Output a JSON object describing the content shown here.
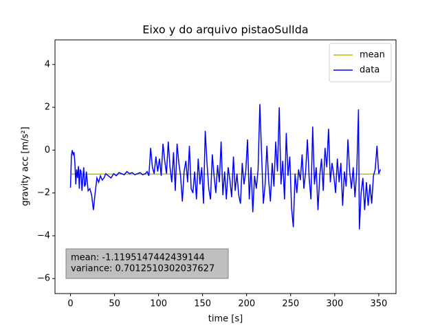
{
  "chart_data": {
    "type": "line",
    "title": "Eixo y do arquivo pistaoSulIda",
    "xlabel": "time [s]",
    "ylabel": "gravity acc [m/s²]",
    "xlim": [
      -17.6,
      369.6
    ],
    "ylim": [
      -6.7,
      5.15
    ],
    "xticks": [
      0,
      50,
      100,
      150,
      200,
      250,
      300,
      350
    ],
    "yticks": [
      {
        "value": -6,
        "label": "−6"
      },
      {
        "value": -4,
        "label": "−4"
      },
      {
        "value": -2,
        "label": "−2"
      },
      0,
      2,
      4
    ],
    "legend": "upper right",
    "annotations": [
      "mean: -1.1195147442439144",
      "variance: 0.7012510302037627"
    ],
    "series": [
      {
        "name": "mean",
        "color": "#bfbf00",
        "x": [
          0,
          352
        ],
        "values": [
          -1.1195147442439144,
          -1.1195147442439144
        ]
      },
      {
        "name": "data",
        "color": "#0000ff",
        "x": [
          0,
          1,
          2,
          3,
          4,
          5,
          6,
          7,
          8,
          9,
          10,
          11,
          12,
          13,
          14,
          15,
          16,
          17,
          18,
          20,
          22,
          24,
          26,
          28,
          30,
          32,
          34,
          36,
          38,
          40,
          43,
          46,
          49,
          52,
          55,
          58,
          61,
          64,
          67,
          70,
          73,
          76,
          79,
          82,
          85,
          87,
          89,
          91,
          93,
          95,
          97,
          99,
          101,
          103,
          105,
          107,
          109,
          111,
          113,
          115,
          117,
          119,
          121,
          123,
          125,
          127,
          129,
          131,
          133,
          135,
          137,
          139,
          141,
          143,
          145,
          147,
          149,
          151,
          153,
          155,
          157,
          159,
          161,
          163,
          165,
          167,
          169,
          171,
          173,
          175,
          177,
          179,
          181,
          183,
          185,
          187,
          189,
          191,
          193,
          195,
          197,
          199,
          201,
          203,
          205,
          207,
          209,
          211,
          213,
          215,
          217,
          219,
          221,
          223,
          225,
          227,
          229,
          231,
          233,
          235,
          237,
          239,
          241,
          243,
          245,
          247,
          249,
          251,
          253,
          255,
          257,
          259,
          261,
          263,
          265,
          267,
          269,
          271,
          273,
          275,
          277,
          279,
          281,
          283,
          285,
          287,
          289,
          291,
          293,
          295,
          297,
          299,
          301,
          303,
          305,
          307,
          309,
          311,
          313,
          315,
          317,
          319,
          321,
          323,
          325,
          327,
          328,
          330,
          332,
          334,
          336,
          338,
          340,
          342,
          344,
          346,
          348,
          350,
          352
        ],
        "values": [
          -1.75,
          -0.3,
          0.0,
          -0.2,
          -0.1,
          -0.6,
          -1.6,
          -0.9,
          -1.3,
          -0.75,
          -1.8,
          -0.9,
          -1.0,
          -1.9,
          -1.3,
          -0.8,
          -1.7,
          -1.6,
          -1.0,
          -1.9,
          -1.8,
          -2.1,
          -2.8,
          -2.0,
          -1.3,
          -1.5,
          -1.2,
          -1.4,
          -1.3,
          -1.1,
          -1.2,
          -1.3,
          -1.1,
          -1.2,
          -1.05,
          -1.1,
          -1.15,
          -1.0,
          -1.1,
          -1.05,
          -1.15,
          -1.1,
          -1.05,
          -1.15,
          -1.1,
          -1.0,
          -1.2,
          0.1,
          -0.8,
          -1.1,
          -0.3,
          -1.0,
          -0.4,
          -1.2,
          0.3,
          -0.5,
          -1.1,
          0.4,
          -0.8,
          -1.5,
          -0.1,
          -1.9,
          0.3,
          -0.6,
          -1.2,
          -2.4,
          -1.0,
          -0.5,
          -1.5,
          0.2,
          -1.8,
          -2.0,
          -1.0,
          -2.3,
          -0.4,
          -1.6,
          -0.8,
          -2.5,
          0.9,
          -0.6,
          -1.8,
          -2.3,
          -0.2,
          -1.2,
          -2.0,
          -0.7,
          -1.5,
          0.4,
          -2.1,
          -1.0,
          -2.3,
          -0.8,
          -1.4,
          -2.2,
          -0.3,
          -1.9,
          -1.1,
          -2.1,
          -2.5,
          -0.6,
          -1.6,
          -1.0,
          0.5,
          -2.3,
          -0.8,
          -2.9,
          -1.2,
          -1.8,
          -0.9,
          2.15,
          -0.2,
          -2.5,
          -1.6,
          0.2,
          -1.4,
          -2.4,
          -0.6,
          -1.7,
          0.4,
          -1.0,
          2.0,
          -1.6,
          -0.5,
          -2.3,
          0.8,
          -1.2,
          -0.3,
          -2.7,
          -3.6,
          -1.1,
          -2.0,
          -0.9,
          -1.4,
          -0.2,
          -1.8,
          -1.0,
          0.5,
          -1.3,
          -2.3,
          1.1,
          -1.6,
          -0.8,
          -2.8,
          -1.2,
          -0.4,
          -1.9,
          0.1,
          -0.8,
          1.0,
          -1.5,
          -0.6,
          -1.2,
          -2.0,
          -0.4,
          -1.5,
          -0.6,
          -2.6,
          -1.0,
          -1.7,
          0.5,
          -1.0,
          -1.8,
          -0.8,
          -2.2,
          -1.0,
          1.9,
          -3.7,
          -2.0,
          -1.3,
          -2.8,
          -1.5,
          -2.6,
          -1.6,
          -2.5,
          -1.2,
          -0.9,
          0.2,
          -1.1,
          -0.9
        ]
      }
    ]
  }
}
